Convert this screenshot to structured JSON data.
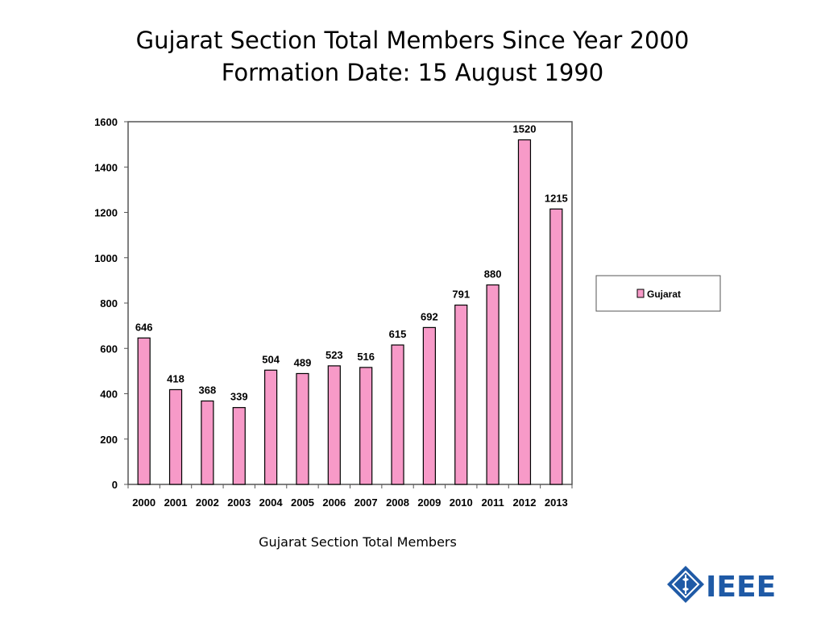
{
  "slide": {
    "title_line1": "Gujarat Section Total Members Since Year 2000",
    "title_line2": "Formation Date: 15 August 1990",
    "caption": "Gujarat Section Total Members"
  },
  "logo": {
    "text": "IEEE",
    "color": "#1f5aa6"
  },
  "chart_data": {
    "type": "bar",
    "categories": [
      "2000",
      "2001",
      "2002",
      "2003",
      "2004",
      "2005",
      "2006",
      "2007",
      "2008",
      "2009",
      "2010",
      "2011",
      "2012",
      "2013"
    ],
    "series": [
      {
        "name": "Gujarat",
        "values": [
          646,
          418,
          368,
          339,
          504,
          489,
          523,
          516,
          615,
          692,
          791,
          880,
          1520,
          1215
        ],
        "color": "#f79ac8"
      }
    ],
    "ylim": [
      0,
      1600
    ],
    "yticks": [
      0,
      200,
      400,
      600,
      800,
      1000,
      1200,
      1400,
      1600
    ],
    "grid": false,
    "legend": "right",
    "data_labels": true
  }
}
